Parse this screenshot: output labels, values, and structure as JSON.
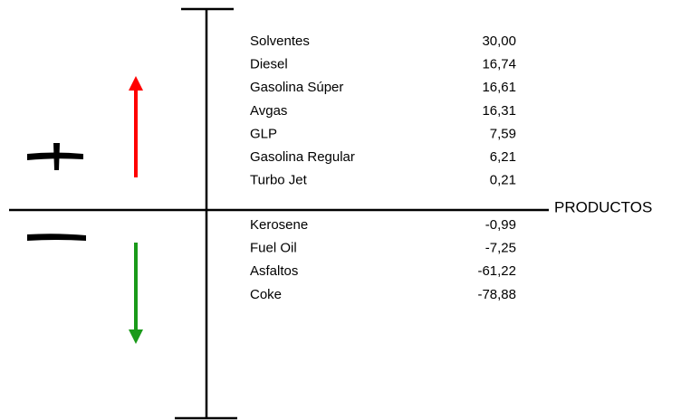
{
  "axis_label": "PRODUCTOS",
  "positive_rows": [
    {
      "name": "Solventes",
      "value": "30,00"
    },
    {
      "name": "Diesel",
      "value": "16,74"
    },
    {
      "name": "Gasolina Súper",
      "value": "16,61"
    },
    {
      "name": "Avgas",
      "value": "16,31"
    },
    {
      "name": "GLP",
      "value": "7,59"
    },
    {
      "name": "Gasolina Regular",
      "value": "6,21"
    },
    {
      "name": "Turbo Jet",
      "value": "0,21"
    }
  ],
  "negative_rows": [
    {
      "name": "Kerosene",
      "value": "-0,99"
    },
    {
      "name": "Fuel Oil",
      "value": "-7,25"
    },
    {
      "name": "Asfaltos",
      "value": "-61,22"
    },
    {
      "name": "Coke",
      "value": "-78,88"
    }
  ]
}
